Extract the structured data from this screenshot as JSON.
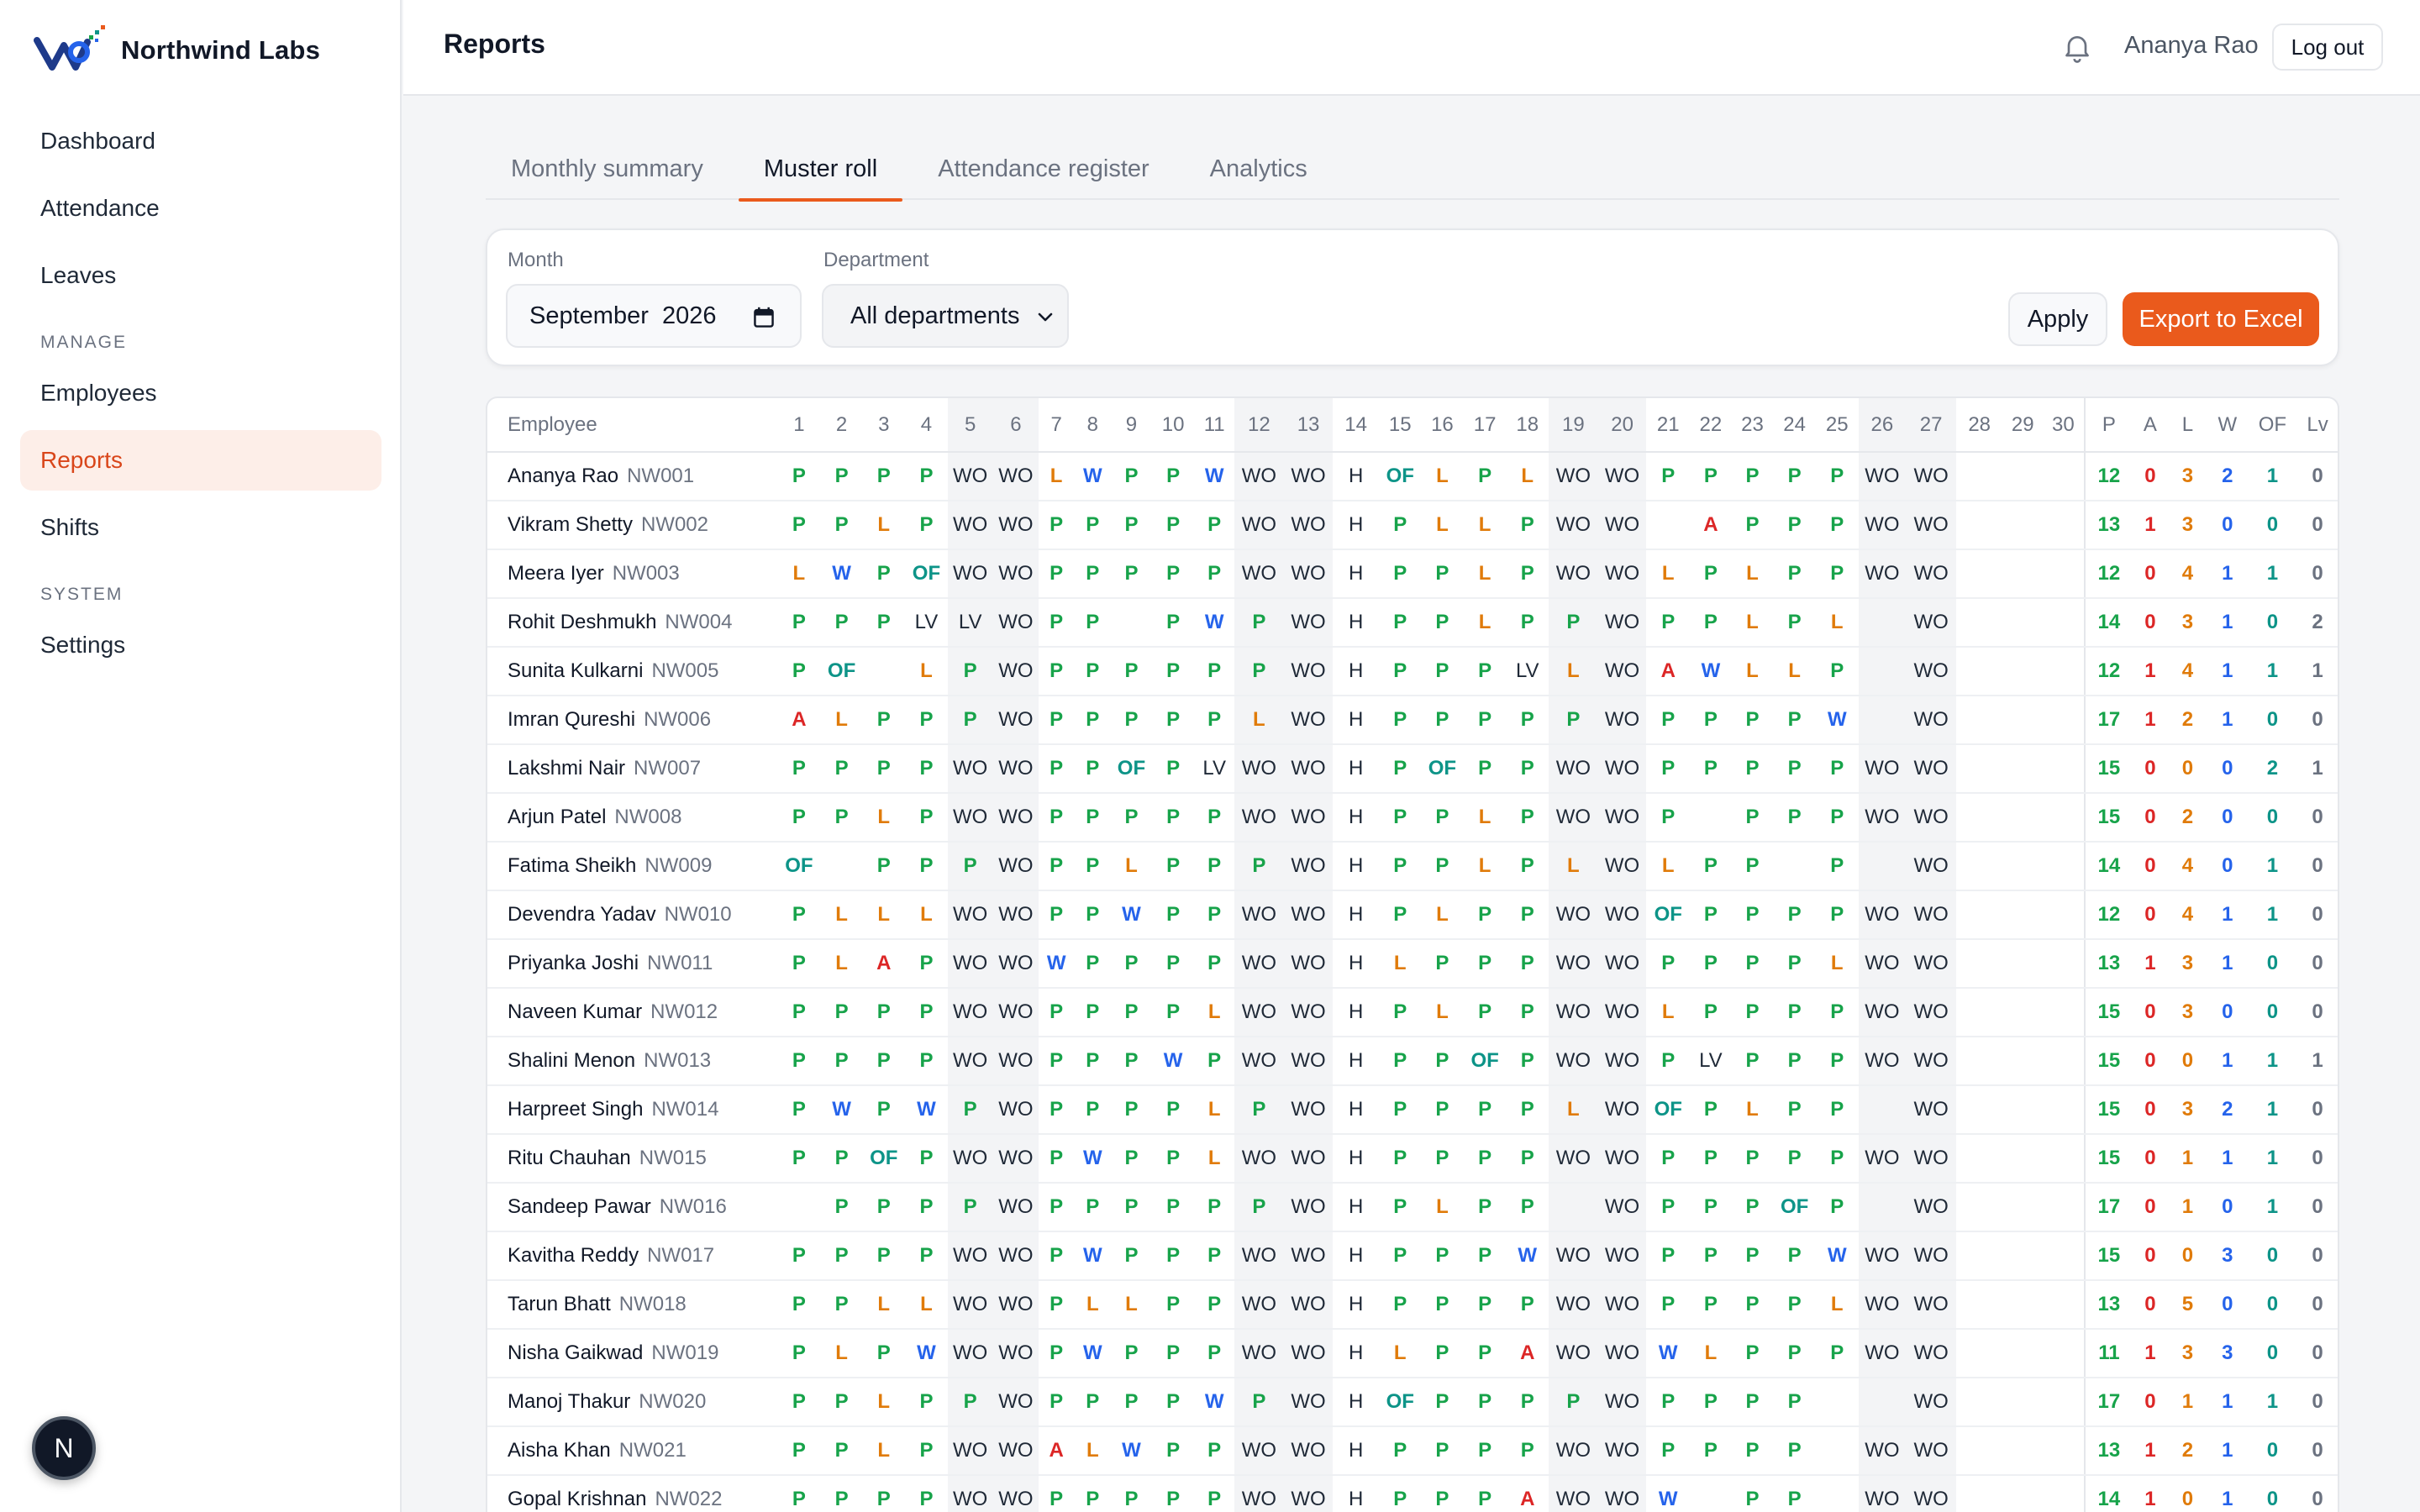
{
  "brand": {
    "name": "Northwind Labs"
  },
  "sidebar": {
    "items": [
      {
        "label": "Dashboard"
      },
      {
        "label": "Attendance"
      },
      {
        "label": "Leaves"
      }
    ],
    "section_manage": "MANAGE",
    "manage_items": [
      {
        "label": "Employees"
      },
      {
        "label": "Reports"
      },
      {
        "label": "Shifts"
      }
    ],
    "section_system": "SYSTEM",
    "system_items": [
      {
        "label": "Settings"
      }
    ],
    "bottom_avatar": "N"
  },
  "header": {
    "title": "Reports",
    "user": "Ananya Rao",
    "logout": "Log out"
  },
  "tabs": [
    {
      "label": "Monthly summary"
    },
    {
      "label": "Muster roll"
    },
    {
      "label": "Attendance register"
    },
    {
      "label": "Analytics"
    }
  ],
  "filters": {
    "month_label": "Month",
    "month_value": "September  2026",
    "dept_label": "Department",
    "dept_value": "All departments",
    "apply": "Apply",
    "export": "Export to Excel"
  },
  "colors": {
    "accent": "#ea5a1c",
    "present": "#17a34a",
    "leave": "#e07b0a",
    "wfh": "#2563eb",
    "absent": "#dc2626",
    "onfield": "#0d9488"
  },
  "table": {
    "employee_header": "Employee",
    "days": [
      "1",
      "2",
      "3",
      "4",
      "5",
      "6",
      "7",
      "8",
      "9",
      "10",
      "11",
      "12",
      "13",
      "14",
      "15",
      "16",
      "17",
      "18",
      "19",
      "20",
      "21",
      "22",
      "23",
      "24",
      "25",
      "26",
      "27",
      "28",
      "29",
      "30"
    ],
    "summary_headers": [
      "P",
      "A",
      "L",
      "W",
      "OF",
      "Lv"
    ],
    "rows": [
      {
        "name": "Ananya Rao",
        "id": "NW001",
        "days": [
          "P",
          "P",
          "P",
          "P",
          "WO",
          "WO",
          "L",
          "W",
          "P",
          "P",
          "W",
          "WO",
          "WO",
          "H",
          "OF",
          "L",
          "P",
          "L",
          "WO",
          "WO",
          "P",
          "P",
          "P",
          "P",
          "P",
          "WO",
          "WO",
          "",
          "",
          ""
        ],
        "summary": [
          "12",
          "0",
          "3",
          "2",
          "1",
          "0"
        ]
      },
      {
        "name": "Vikram Shetty",
        "id": "NW002",
        "days": [
          "P",
          "P",
          "L",
          "P",
          "WO",
          "WO",
          "P",
          "P",
          "P",
          "P",
          "P",
          "WO",
          "WO",
          "H",
          "P",
          "L",
          "L",
          "P",
          "WO",
          "WO",
          "",
          "A",
          "P",
          "P",
          "P",
          "WO",
          "WO",
          "",
          "",
          ""
        ],
        "summary": [
          "13",
          "1",
          "3",
          "0",
          "0",
          "0"
        ]
      },
      {
        "name": "Meera Iyer",
        "id": "NW003",
        "days": [
          "L",
          "W",
          "P",
          "OF",
          "WO",
          "WO",
          "P",
          "P",
          "P",
          "P",
          "P",
          "WO",
          "WO",
          "H",
          "P",
          "P",
          "L",
          "P",
          "WO",
          "WO",
          "L",
          "P",
          "L",
          "P",
          "P",
          "WO",
          "WO",
          "",
          "",
          ""
        ],
        "summary": [
          "12",
          "0",
          "4",
          "1",
          "1",
          "0"
        ]
      },
      {
        "name": "Rohit Deshmukh",
        "id": "NW004",
        "days": [
          "P",
          "P",
          "P",
          "LV",
          "LV",
          "WO",
          "P",
          "P",
          "",
          "P",
          "W",
          "P",
          "WO",
          "H",
          "P",
          "P",
          "L",
          "P",
          "P",
          "WO",
          "P",
          "P",
          "L",
          "P",
          "L",
          "",
          "WO",
          "",
          "",
          ""
        ],
        "summary": [
          "14",
          "0",
          "3",
          "1",
          "0",
          "2"
        ]
      },
      {
        "name": "Sunita Kulkarni",
        "id": "NW005",
        "days": [
          "P",
          "OF",
          "",
          "L",
          "P",
          "WO",
          "P",
          "P",
          "P",
          "P",
          "P",
          "P",
          "WO",
          "H",
          "P",
          "P",
          "P",
          "LV",
          "L",
          "WO",
          "A",
          "W",
          "L",
          "L",
          "P",
          "",
          "WO",
          "",
          "",
          ""
        ],
        "summary": [
          "12",
          "1",
          "4",
          "1",
          "1",
          "1"
        ]
      },
      {
        "name": "Imran Qureshi",
        "id": "NW006",
        "days": [
          "A",
          "L",
          "P",
          "P",
          "P",
          "WO",
          "P",
          "P",
          "P",
          "P",
          "P",
          "L",
          "WO",
          "H",
          "P",
          "P",
          "P",
          "P",
          "P",
          "WO",
          "P",
          "P",
          "P",
          "P",
          "W",
          "",
          "WO",
          "",
          "",
          ""
        ],
        "summary": [
          "17",
          "1",
          "2",
          "1",
          "0",
          "0"
        ]
      },
      {
        "name": "Lakshmi Nair",
        "id": "NW007",
        "days": [
          "P",
          "P",
          "P",
          "P",
          "WO",
          "WO",
          "P",
          "P",
          "OF",
          "P",
          "LV",
          "WO",
          "WO",
          "H",
          "P",
          "OF",
          "P",
          "P",
          "WO",
          "WO",
          "P",
          "P",
          "P",
          "P",
          "P",
          "WO",
          "WO",
          "",
          "",
          ""
        ],
        "summary": [
          "15",
          "0",
          "0",
          "0",
          "2",
          "1"
        ]
      },
      {
        "name": "Arjun Patel",
        "id": "NW008",
        "days": [
          "P",
          "P",
          "L",
          "P",
          "WO",
          "WO",
          "P",
          "P",
          "P",
          "P",
          "P",
          "WO",
          "WO",
          "H",
          "P",
          "P",
          "L",
          "P",
          "WO",
          "WO",
          "P",
          "",
          "P",
          "P",
          "P",
          "WO",
          "WO",
          "",
          "",
          ""
        ],
        "summary": [
          "15",
          "0",
          "2",
          "0",
          "0",
          "0"
        ]
      },
      {
        "name": "Fatima Sheikh",
        "id": "NW009",
        "days": [
          "OF",
          "",
          "P",
          "P",
          "P",
          "WO",
          "P",
          "P",
          "L",
          "P",
          "P",
          "P",
          "WO",
          "H",
          "P",
          "P",
          "L",
          "P",
          "L",
          "WO",
          "L",
          "P",
          "P",
          "",
          "P",
          "",
          "WO",
          "",
          "",
          ""
        ],
        "summary": [
          "14",
          "0",
          "4",
          "0",
          "1",
          "0"
        ]
      },
      {
        "name": "Devendra Yadav",
        "id": "NW010",
        "days": [
          "P",
          "L",
          "L",
          "L",
          "WO",
          "WO",
          "P",
          "P",
          "W",
          "P",
          "P",
          "WO",
          "WO",
          "H",
          "P",
          "L",
          "P",
          "P",
          "WO",
          "WO",
          "OF",
          "P",
          "P",
          "P",
          "P",
          "WO",
          "WO",
          "",
          "",
          ""
        ],
        "summary": [
          "12",
          "0",
          "4",
          "1",
          "1",
          "0"
        ]
      },
      {
        "name": "Priyanka Joshi",
        "id": "NW011",
        "days": [
          "P",
          "L",
          "A",
          "P",
          "WO",
          "WO",
          "W",
          "P",
          "P",
          "P",
          "P",
          "WO",
          "WO",
          "H",
          "L",
          "P",
          "P",
          "P",
          "WO",
          "WO",
          "P",
          "P",
          "P",
          "P",
          "L",
          "WO",
          "WO",
          "",
          "",
          ""
        ],
        "summary": [
          "13",
          "1",
          "3",
          "1",
          "0",
          "0"
        ]
      },
      {
        "name": "Naveen Kumar",
        "id": "NW012",
        "days": [
          "P",
          "P",
          "P",
          "P",
          "WO",
          "WO",
          "P",
          "P",
          "P",
          "P",
          "L",
          "WO",
          "WO",
          "H",
          "P",
          "L",
          "P",
          "P",
          "WO",
          "WO",
          "L",
          "P",
          "P",
          "P",
          "P",
          "WO",
          "WO",
          "",
          "",
          ""
        ],
        "summary": [
          "15",
          "0",
          "3",
          "0",
          "0",
          "0"
        ]
      },
      {
        "name": "Shalini Menon",
        "id": "NW013",
        "days": [
          "P",
          "P",
          "P",
          "P",
          "WO",
          "WO",
          "P",
          "P",
          "P",
          "W",
          "P",
          "WO",
          "WO",
          "H",
          "P",
          "P",
          "OF",
          "P",
          "WO",
          "WO",
          "P",
          "LV",
          "P",
          "P",
          "P",
          "WO",
          "WO",
          "",
          "",
          ""
        ],
        "summary": [
          "15",
          "0",
          "0",
          "1",
          "1",
          "1"
        ]
      },
      {
        "name": "Harpreet Singh",
        "id": "NW014",
        "days": [
          "P",
          "W",
          "P",
          "W",
          "P",
          "WO",
          "P",
          "P",
          "P",
          "P",
          "L",
          "P",
          "WO",
          "H",
          "P",
          "P",
          "P",
          "P",
          "L",
          "WO",
          "OF",
          "P",
          "L",
          "P",
          "P",
          "",
          "WO",
          "",
          "",
          ""
        ],
        "summary": [
          "15",
          "0",
          "3",
          "2",
          "1",
          "0"
        ]
      },
      {
        "name": "Ritu Chauhan",
        "id": "NW015",
        "days": [
          "P",
          "P",
          "OF",
          "P",
          "WO",
          "WO",
          "P",
          "W",
          "P",
          "P",
          "L",
          "WO",
          "WO",
          "H",
          "P",
          "P",
          "P",
          "P",
          "WO",
          "WO",
          "P",
          "P",
          "P",
          "P",
          "P",
          "WO",
          "WO",
          "",
          "",
          ""
        ],
        "summary": [
          "15",
          "0",
          "1",
          "1",
          "1",
          "0"
        ]
      },
      {
        "name": "Sandeep Pawar",
        "id": "NW016",
        "days": [
          "",
          "P",
          "P",
          "P",
          "P",
          "WO",
          "P",
          "P",
          "P",
          "P",
          "P",
          "P",
          "WO",
          "H",
          "P",
          "L",
          "P",
          "P",
          "",
          "WO",
          "P",
          "P",
          "P",
          "OF",
          "P",
          "",
          "WO",
          "",
          "",
          ""
        ],
        "summary": [
          "17",
          "0",
          "1",
          "0",
          "1",
          "0"
        ]
      },
      {
        "name": "Kavitha Reddy",
        "id": "NW017",
        "days": [
          "P",
          "P",
          "P",
          "P",
          "WO",
          "WO",
          "P",
          "W",
          "P",
          "P",
          "P",
          "WO",
          "WO",
          "H",
          "P",
          "P",
          "P",
          "W",
          "WO",
          "WO",
          "P",
          "P",
          "P",
          "P",
          "W",
          "WO",
          "WO",
          "",
          "",
          ""
        ],
        "summary": [
          "15",
          "0",
          "0",
          "3",
          "0",
          "0"
        ]
      },
      {
        "name": "Tarun Bhatt",
        "id": "NW018",
        "days": [
          "P",
          "P",
          "L",
          "L",
          "WO",
          "WO",
          "P",
          "L",
          "L",
          "P",
          "P",
          "WO",
          "WO",
          "H",
          "P",
          "P",
          "P",
          "P",
          "WO",
          "WO",
          "P",
          "P",
          "P",
          "P",
          "L",
          "WO",
          "WO",
          "",
          "",
          ""
        ],
        "summary": [
          "13",
          "0",
          "5",
          "0",
          "0",
          "0"
        ]
      },
      {
        "name": "Nisha Gaikwad",
        "id": "NW019",
        "days": [
          "P",
          "L",
          "P",
          "W",
          "WO",
          "WO",
          "P",
          "W",
          "P",
          "P",
          "P",
          "WO",
          "WO",
          "H",
          "L",
          "P",
          "P",
          "A",
          "WO",
          "WO",
          "W",
          "L",
          "P",
          "P",
          "P",
          "WO",
          "WO",
          "",
          "",
          ""
        ],
        "summary": [
          "11",
          "1",
          "3",
          "3",
          "0",
          "0"
        ]
      },
      {
        "name": "Manoj Thakur",
        "id": "NW020",
        "days": [
          "P",
          "P",
          "L",
          "P",
          "P",
          "WO",
          "P",
          "P",
          "P",
          "P",
          "W",
          "P",
          "WO",
          "H",
          "OF",
          "P",
          "P",
          "P",
          "P",
          "WO",
          "P",
          "P",
          "P",
          "P",
          "",
          "",
          "WO",
          "",
          "",
          ""
        ],
        "summary": [
          "17",
          "0",
          "1",
          "1",
          "1",
          "0"
        ]
      },
      {
        "name": "Aisha Khan",
        "id": "NW021",
        "days": [
          "P",
          "P",
          "L",
          "P",
          "WO",
          "WO",
          "A",
          "L",
          "W",
          "P",
          "P",
          "WO",
          "WO",
          "H",
          "P",
          "P",
          "P",
          "P",
          "WO",
          "WO",
          "P",
          "P",
          "P",
          "P",
          "",
          "WO",
          "WO",
          "",
          "",
          ""
        ],
        "summary": [
          "13",
          "1",
          "2",
          "1",
          "0",
          "0"
        ]
      },
      {
        "name": "Gopal Krishnan",
        "id": "NW022",
        "days": [
          "P",
          "P",
          "P",
          "P",
          "WO",
          "WO",
          "P",
          "P",
          "P",
          "P",
          "P",
          "WO",
          "WO",
          "H",
          "P",
          "P",
          "P",
          "A",
          "WO",
          "WO",
          "W",
          "",
          "P",
          "P",
          "",
          "WO",
          "WO",
          "",
          "",
          ""
        ],
        "summary": [
          "14",
          "1",
          "0",
          "1",
          "0",
          "0"
        ]
      }
    ]
  }
}
